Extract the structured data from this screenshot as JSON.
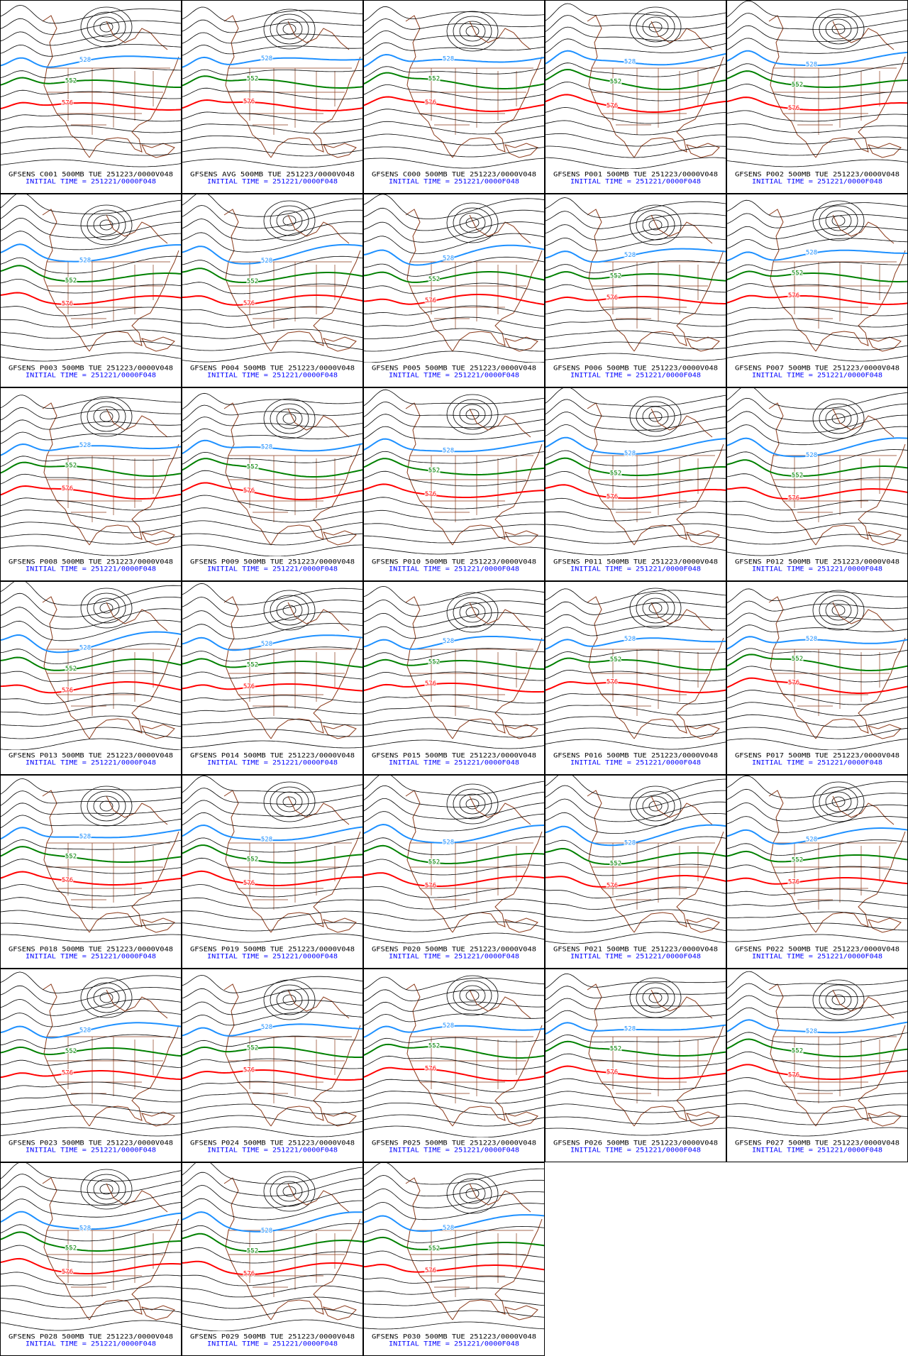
{
  "initial_time": "INITIAL TIME = 251221/0000F048",
  "contours": [
    {
      "label": "528",
      "color": "#1e90ff"
    },
    {
      "label": "552",
      "color": "#008000"
    },
    {
      "label": "576",
      "color": "#ff0000"
    }
  ],
  "panels": [
    {
      "title": "GFSENS C001 500MB TUE 251223/0000V048"
    },
    {
      "title": "GFSENS AVG 500MB TUE 251223/0000V048"
    },
    {
      "title": "GFSENS C000 500MB TUE 251223/0000V048"
    },
    {
      "title": "GFSENS P001 500MB TUE 251223/0000V048"
    },
    {
      "title": "GFSENS P002 500MB TUE 251223/0000V048"
    },
    {
      "title": "GFSENS P003 500MB TUE 251223/0000V048"
    },
    {
      "title": "GFSENS P004 500MB TUE 251223/0000V048"
    },
    {
      "title": "GFSENS P005 500MB TUE 251223/0000V048"
    },
    {
      "title": "GFSENS P006 500MB TUE 251223/0000V048"
    },
    {
      "title": "GFSENS P007 500MB TUE 251223/0000V048"
    },
    {
      "title": "GFSENS P008 500MB TUE 251223/0000V048"
    },
    {
      "title": "GFSENS P009 500MB TUE 251223/0000V048"
    },
    {
      "title": "GFSENS P010 500MB TUE 251223/0000V048"
    },
    {
      "title": "GFSENS P011 500MB TUE 251223/0000V048"
    },
    {
      "title": "GFSENS P012 500MB TUE 251223/0000V048"
    },
    {
      "title": "GFSENS P013 500MB TUE 251223/0000V048"
    },
    {
      "title": "GFSENS P014 500MB TUE 251223/0000V048"
    },
    {
      "title": "GFSENS P015 500MB TUE 251223/0000V048"
    },
    {
      "title": "GFSENS P016 500MB TUE 251223/0000V048"
    },
    {
      "title": "GFSENS P017 500MB TUE 251223/0000V048"
    },
    {
      "title": "GFSENS P018 500MB TUE 251223/0000V048"
    },
    {
      "title": "GFSENS P019 500MB TUE 251223/0000V048"
    },
    {
      "title": "GFSENS P020 500MB TUE 251223/0000V048"
    },
    {
      "title": "GFSENS P021 500MB TUE 251223/0000V048"
    },
    {
      "title": "GFSENS P022 500MB TUE 251223/0000V048"
    },
    {
      "title": "GFSENS P023 500MB TUE 251223/0000V048"
    },
    {
      "title": "GFSENS P024 500MB TUE 251223/0000V048"
    },
    {
      "title": "GFSENS P025 500MB TUE 251223/0000V048"
    },
    {
      "title": "GFSENS P026 500MB TUE 251223/0000V048"
    },
    {
      "title": "GFSENS P027 500MB TUE 251223/0000V048"
    },
    {
      "title": "GFSENS P028 500MB TUE 251223/0000V048"
    },
    {
      "title": "GFSENS P029 500MB TUE 251223/0000V048"
    },
    {
      "title": "GFSENS P030 500MB TUE 251223/0000V048"
    }
  ]
}
